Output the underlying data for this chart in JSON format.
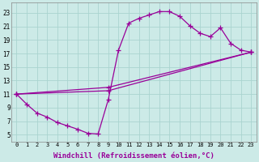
{
  "background_color": "#cceae7",
  "grid_color": "#aad4d0",
  "line_color": "#990099",
  "marker": "+",
  "markersize": 4,
  "linewidth": 0.9,
  "xlabel": "Windchill (Refroidissement éolien,°C)",
  "xlabel_fontsize": 6.5,
  "ytick_labels": [
    "5",
    "7",
    "9",
    "11",
    "13",
    "15",
    "17",
    "19",
    "21",
    "23"
  ],
  "xtick_labels": [
    "0",
    "1",
    "2",
    "3",
    "4",
    "5",
    "6",
    "7",
    "8",
    "9",
    "10",
    "11",
    "12",
    "13",
    "14",
    "15",
    "16",
    "17",
    "18",
    "19",
    "20",
    "21",
    "22",
    "23"
  ],
  "xlim": [
    -0.5,
    23.5
  ],
  "ylim": [
    4.0,
    24.5
  ],
  "yticks": [
    5,
    7,
    9,
    11,
    13,
    15,
    17,
    19,
    21,
    23
  ],
  "xticks": [
    0,
    1,
    2,
    3,
    4,
    5,
    6,
    7,
    8,
    9,
    10,
    11,
    12,
    13,
    14,
    15,
    16,
    17,
    18,
    19,
    20,
    21,
    22,
    23
  ],
  "curves": [
    {
      "x": [
        0,
        1,
        2,
        3,
        4,
        5,
        6,
        7,
        8,
        9,
        10,
        11,
        12,
        13,
        14,
        15,
        16,
        17,
        18,
        19,
        20,
        21,
        22,
        23
      ],
      "y": [
        11,
        9.5,
        8.2,
        7.6,
        6.8,
        6.3,
        5.8,
        5.2,
        5.1,
        10.2,
        17.5,
        21.5,
        22.2,
        22.7,
        23.2,
        23.2,
        22.5,
        21.1,
        20.0,
        19.5,
        20.8,
        18.5,
        17.5,
        17.2
      ]
    },
    {
      "x": [
        0,
        9,
        23
      ],
      "y": [
        11,
        12.0,
        17.2
      ]
    },
    {
      "x": [
        0,
        9,
        23
      ],
      "y": [
        11,
        11.5,
        17.2
      ]
    }
  ]
}
